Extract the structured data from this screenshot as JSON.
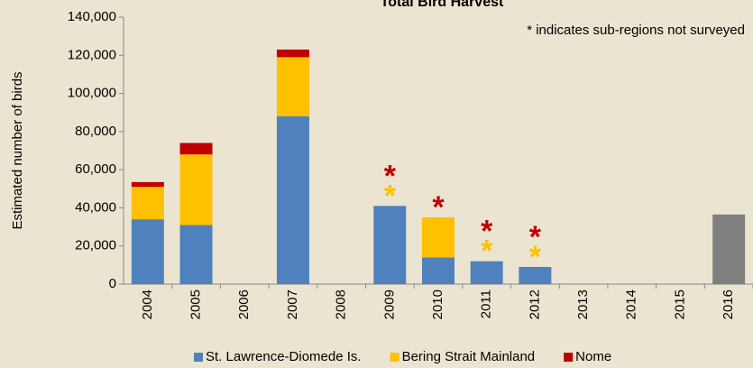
{
  "chart_data": {
    "type": "bar",
    "stacked": true,
    "title": "Total Bird Harvest",
    "y_label": "Estimated number of birds",
    "annotation": "* indicates sub-regions not surveyed",
    "marker_symbol": "*",
    "categories": [
      "2004",
      "2005",
      "2006",
      "2007",
      "2008",
      "2009",
      "2010",
      "2011",
      "2012",
      "2013",
      "2014",
      "2015",
      "2016"
    ],
    "series": [
      {
        "name": "St. Lawrence-Diomede Is.",
        "color": "#4f81bd",
        "values": [
          34000,
          31000,
          null,
          88000,
          null,
          41000,
          14000,
          12000,
          9000,
          null,
          null,
          null,
          null
        ]
      },
      {
        "name": "Bering Strait Mainland",
        "color": "#ffc000",
        "values": [
          17000,
          37000,
          null,
          31000,
          null,
          null,
          21000,
          null,
          null,
          null,
          null,
          null,
          null
        ],
        "not_surveyed": [
          "2009",
          "2011",
          "2012"
        ]
      },
      {
        "name": "Nome",
        "color": "#c00000",
        "values": [
          2500,
          6000,
          null,
          4000,
          null,
          null,
          null,
          null,
          null,
          null,
          null,
          null,
          null
        ],
        "not_surveyed": [
          "2009",
          "2010",
          "2011",
          "2012"
        ]
      },
      {
        "color": "#7f7f7f",
        "values": [
          null,
          null,
          null,
          null,
          null,
          null,
          null,
          null,
          null,
          null,
          null,
          null,
          36500
        ]
      }
    ],
    "ylim": [
      0,
      140000
    ],
    "yticks": [
      0,
      {
        "value": 20000,
        "label": "20,000"
      },
      {
        "value": 40000,
        "label": "40,000"
      },
      {
        "value": 60000,
        "label": "60,000"
      },
      {
        "value": 80000,
        "label": "80,000"
      },
      {
        "value": 100000,
        "label": "100,000"
      },
      {
        "value": 120000,
        "label": "120,000"
      },
      {
        "value": 140000,
        "label": "140,000"
      }
    ],
    "legend": "bottom"
  }
}
